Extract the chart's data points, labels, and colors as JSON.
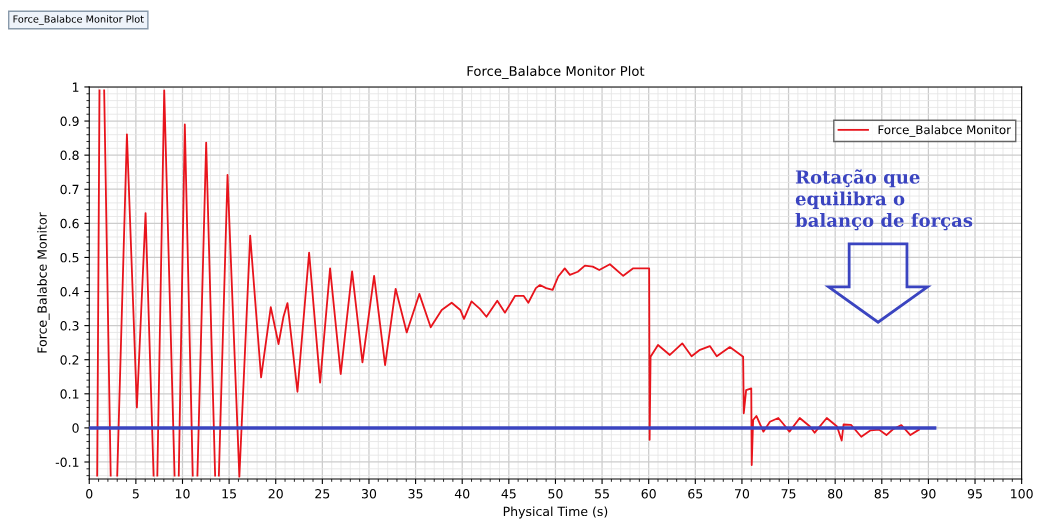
{
  "chart_data": {
    "type": "line",
    "title": "Force_Balabce Monitor Plot",
    "xlabel": "Physical Time (s)",
    "ylabel": "Force_Balabce Monitor",
    "xlim": [
      0,
      100
    ],
    "xticks": [
      0,
      5,
      10,
      15,
      20,
      25,
      30,
      35,
      40,
      45,
      50,
      55,
      60,
      65,
      70,
      75,
      80,
      85,
      90,
      95,
      100
    ],
    "ylim": [
      -0.15,
      1
    ],
    "yticks": [
      {
        "value": -0.1,
        "label": "-0.1"
      },
      0,
      0.1,
      0.2,
      0.3,
      0.4,
      0.5,
      0.6,
      0.7,
      0.8,
      0.9,
      1
    ],
    "grid": true,
    "legend": "top right",
    "annotations": [
      "Force_Balabce Monitor Plot",
      "Rotação que\nequilibra o\nbalanço de forças"
    ],
    "series": [
      {
        "name": "Force_Balabce Monitor",
        "color": "#e8141c",
        "x": [
          0.85,
          1.1,
          1.3,
          1.6,
          2.3,
          2.6,
          3.0,
          4.04,
          5.11,
          6.04,
          6.9,
          7.1,
          7.3,
          8.04,
          9.15,
          9.35,
          9.6,
          10.25,
          11.1,
          11.35,
          11.6,
          12.54,
          13.5,
          13.7,
          13.9,
          14.83,
          16.1,
          17.26,
          18.43,
          19.47,
          20.3,
          20.83,
          21.26,
          22.33,
          23.58,
          24.76,
          25.83,
          26.97,
          28.19,
          29.3,
          30.55,
          31.73,
          32.86,
          34.05,
          35.4,
          36.62,
          37.8,
          38.87,
          39.8,
          40.19,
          41.0,
          41.9,
          42.6,
          43.76,
          44.59,
          45.66,
          46.6,
          47.09,
          47.9,
          48.34,
          49.0,
          49.7,
          50.3,
          51.0,
          51.55,
          52.4,
          53.16,
          54.0,
          54.7,
          55.84,
          57.27,
          58.34,
          59.05,
          60.05,
          60.1,
          60.2,
          61.0,
          62.27,
          63.6,
          64.6,
          65.5,
          66.56,
          67.3,
          68.7,
          70.13,
          70.2,
          70.45,
          71.0,
          71.05,
          71.2,
          71.55,
          72.3,
          73.0,
          73.9,
          74.4,
          75.1,
          76.2,
          77.3,
          77.8,
          79.1,
          80.2,
          80.7,
          80.9,
          81.7,
          82.8,
          83.8,
          84.7,
          85.5,
          86.2,
          87.1,
          88.07,
          89.0
        ],
        "values": [
          -0.14,
          0.99,
          null,
          0.99,
          -0.14,
          null,
          -0.14,
          0.861,
          0.06,
          0.63,
          -0.14,
          null,
          -0.14,
          0.99,
          -0.14,
          null,
          -0.14,
          0.89,
          -0.14,
          null,
          -0.14,
          0.837,
          -0.14,
          null,
          -0.14,
          0.742,
          -0.143,
          0.564,
          0.148,
          0.354,
          0.246,
          0.326,
          0.366,
          0.106,
          0.514,
          0.133,
          0.468,
          0.158,
          0.459,
          0.192,
          0.446,
          0.184,
          0.408,
          0.28,
          0.393,
          0.295,
          0.346,
          0.367,
          0.346,
          0.32,
          0.371,
          0.349,
          0.326,
          0.373,
          0.338,
          0.387,
          0.387,
          0.367,
          0.41,
          0.419,
          0.41,
          0.405,
          0.444,
          0.468,
          0.449,
          0.458,
          0.476,
          0.473,
          0.463,
          0.48,
          0.446,
          0.468,
          0.468,
          0.468,
          -0.035,
          0.209,
          0.243,
          0.214,
          0.248,
          0.21,
          0.229,
          0.24,
          0.21,
          0.237,
          0.209,
          0.043,
          0.111,
          0.116,
          -0.109,
          0.023,
          0.035,
          -0.011,
          0.018,
          0.029,
          0.013,
          -0.011,
          0.029,
          0.004,
          -0.014,
          0.029,
          0.004,
          -0.037,
          0.01,
          0.009,
          -0.026,
          -0.007,
          -0.005,
          -0.021,
          -0.004,
          0.008,
          -0.021,
          -0.005
        ]
      },
      {
        "color": "#3a44c0",
        "x": [
          0,
          90.67
        ],
        "values": [
          0,
          0
        ]
      }
    ]
  }
}
